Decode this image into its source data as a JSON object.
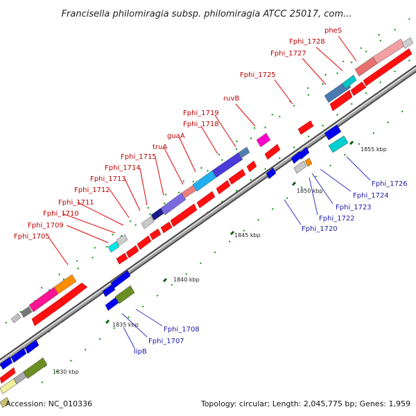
{
  "title": "Francisella philomiragia subsp. philomiragia ATCC 25017, com...",
  "footer": {
    "accession": "Accession: NC_010336",
    "topology": "Topology: circular; Length: 2,045,775 bp; Genes: 1,959"
  },
  "scale_labels": [
    "1830 kbp",
    "1835 kbp",
    "1840 kbp",
    "1845 kbp",
    "1850 kbp",
    "1855 kbp"
  ],
  "genes_top": [
    "Fphi_1705",
    "Fphi_1709",
    "Fphi_1710",
    "Fphi_1711",
    "Fphi_1712",
    "Fphi_1713",
    "Fphi_1714",
    "Fphi_1715",
    "truA",
    "guaA",
    "Fphi_1718",
    "Fphi_1719",
    "ruvB",
    "Fphi_1725",
    "Fphi_1727",
    "Fphi_1728",
    "pheS"
  ],
  "genes_bottom": [
    "Fphi_1708",
    "Fphi_1707",
    "lipB",
    "Fphi_1720",
    "Fphi_1722",
    "Fphi_1723",
    "Fphi_1724",
    "Fphi_1726"
  ],
  "colors": {
    "cds_forward": "#ff0000",
    "cds_reverse": "#0000ee",
    "label_top": "#c00000",
    "label_bottom": "#1a1aa8",
    "backbone": "#808080",
    "tick": "#007000"
  }
}
